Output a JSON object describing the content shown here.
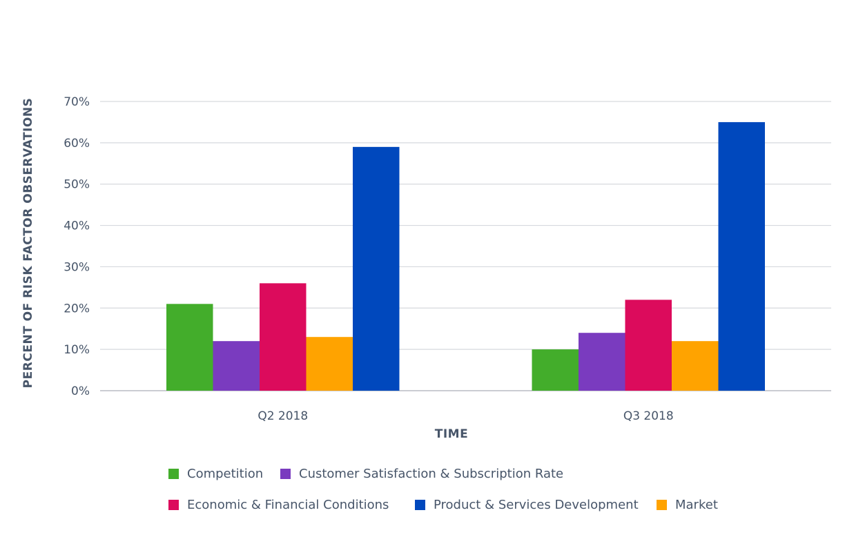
{
  "chart_data": {
    "type": "bar",
    "title": "",
    "xlabel": "TIME",
    "ylabel": "PERCENT OF RISK FACTOR OBSERVATIONS",
    "categories": [
      "Q2 2018",
      "Q3 2018"
    ],
    "ylim": [
      0,
      70
    ],
    "yticks": [
      "0%",
      "10%",
      "20%",
      "30%",
      "40%",
      "50%",
      "60%",
      "70%"
    ],
    "grid": true,
    "legend_position": "bottom",
    "series": [
      {
        "name": "Competition",
        "color": "#43ad2b",
        "values": [
          21,
          10
        ]
      },
      {
        "name": "Customer Satisfaction & Subscription Rate",
        "color": "#7a3bbf",
        "values": [
          12,
          14
        ]
      },
      {
        "name": "Economic & Financial Conditions",
        "color": "#dc0b5c",
        "values": [
          26,
          22
        ]
      },
      {
        "name": "Market",
        "color": "#ffa300",
        "values": [
          13,
          12
        ]
      },
      {
        "name": "Product & Services Development",
        "color": "#0048bd",
        "values": [
          59,
          65
        ]
      }
    ]
  }
}
